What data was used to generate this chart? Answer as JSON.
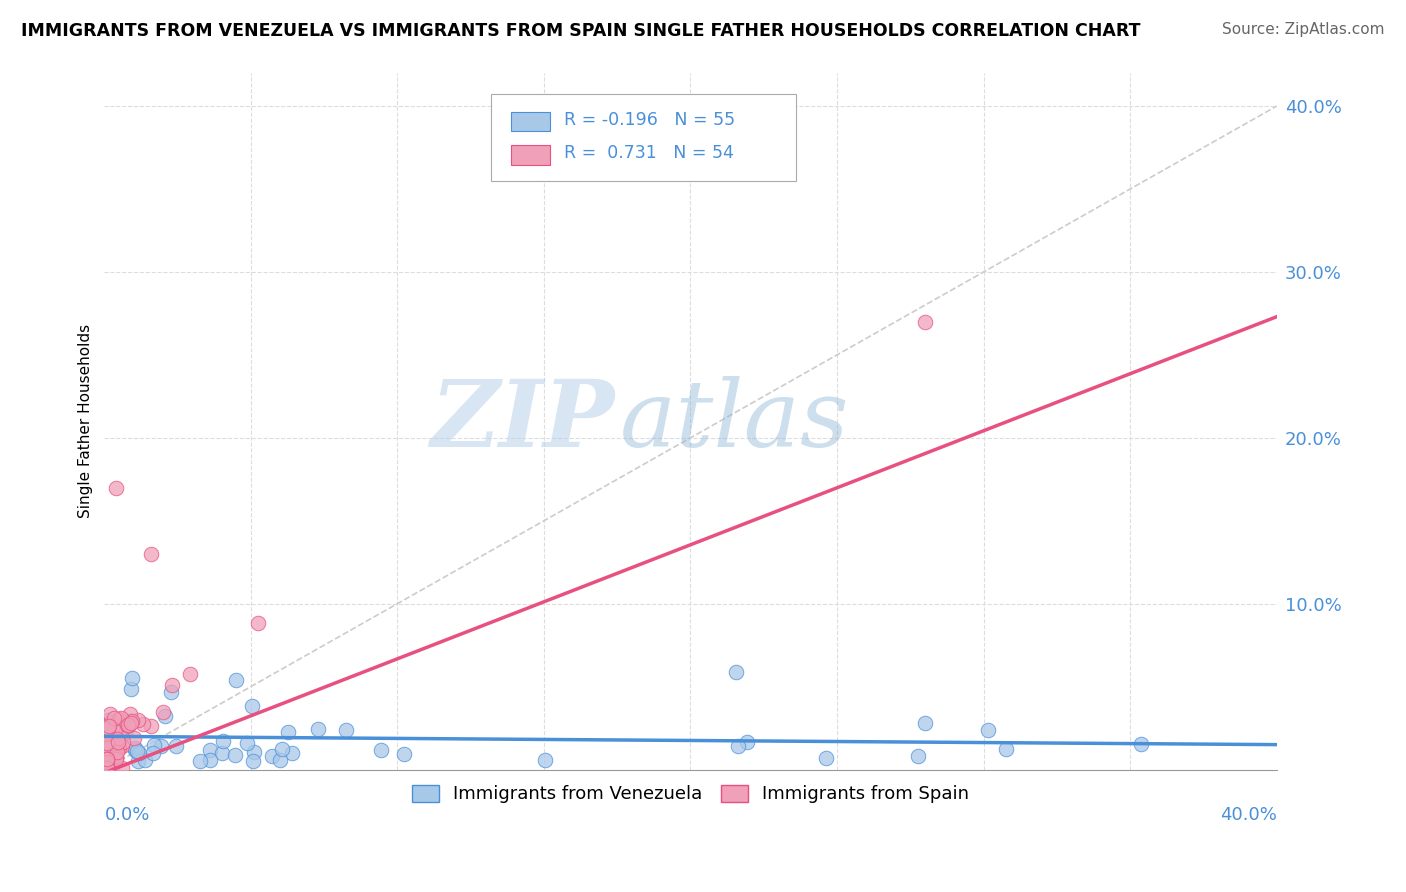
{
  "title": "IMMIGRANTS FROM VENEZUELA VS IMMIGRANTS FROM SPAIN SINGLE FATHER HOUSEHOLDS CORRELATION CHART",
  "source": "Source: ZipAtlas.com",
  "ylabel": "Single Father Households",
  "legend_label1": "Immigrants from Venezuela",
  "legend_label2": "Immigrants from Spain",
  "color_venezuela": "#A8C8E8",
  "color_spain": "#F0A0B8",
  "trend_color_venezuela": "#4A90D9",
  "trend_color_spain": "#E85080",
  "R_venezuela": -0.196,
  "N_venezuela": 55,
  "R_spain": 0.731,
  "N_spain": 54,
  "xlim": [
    0.0,
    0.4
  ],
  "ylim": [
    0.0,
    0.42
  ],
  "watermark_zip": "ZIP",
  "watermark_atlas": "atlas",
  "background_color": "#ffffff",
  "grid_color": "#dddddd",
  "ref_line_color": "#cccccc",
  "y_tick_vals": [
    0.1,
    0.2,
    0.3,
    0.4
  ],
  "y_tick_labels": [
    "10.0%",
    "20.0%",
    "30.0%",
    "40.0%"
  ],
  "title_fontsize": 12.5,
  "source_fontsize": 11,
  "tick_fontsize": 13,
  "axis_label_fontsize": 11
}
